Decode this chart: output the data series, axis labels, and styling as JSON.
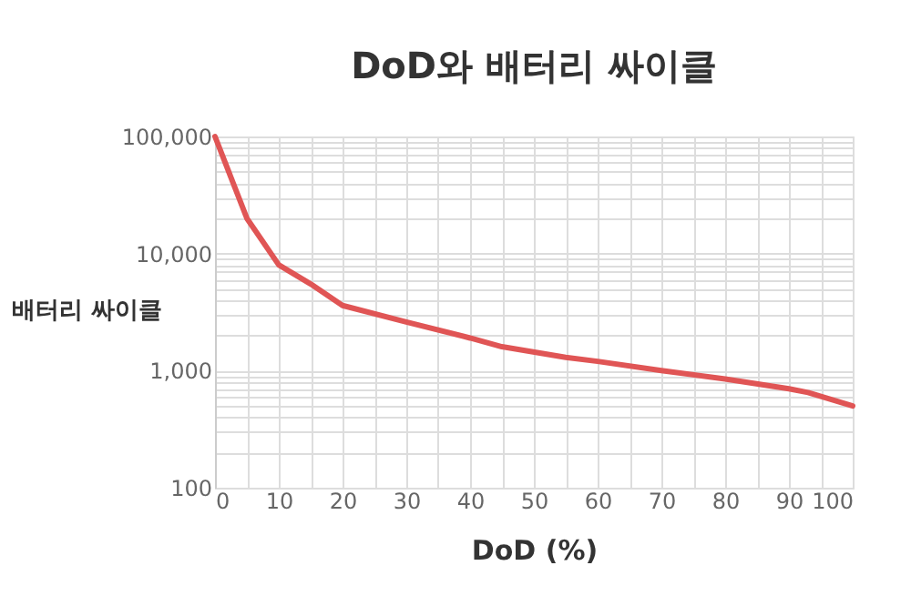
{
  "chart_data": {
    "type": "line",
    "title": "DoD와 배터리 싸이클",
    "xlabel": "DoD (%)",
    "ylabel": "배터리 싸이클",
    "x": [
      0,
      5,
      10,
      15,
      20,
      30,
      40,
      45,
      55,
      60,
      70,
      80,
      90,
      93,
      100
    ],
    "series": [
      {
        "color": "#e05555",
        "values": [
          100000,
          20000,
          8000,
          5500,
          3600,
          2600,
          1900,
          1600,
          1300,
          1200,
          1000,
          850,
          700,
          650,
          500
        ]
      }
    ],
    "xlim": [
      0,
      100
    ],
    "xticks": [
      0,
      {
        "value": 5,
        "label": null
      },
      10,
      {
        "value": 15,
        "label": null
      },
      20,
      {
        "value": 25,
        "label": null
      },
      30,
      {
        "value": 35,
        "label": null
      },
      40,
      {
        "value": 45,
        "label": null
      },
      50,
      {
        "value": 55,
        "label": null
      },
      60,
      {
        "value": 65,
        "label": null
      },
      70,
      {
        "value": 75,
        "label": null
      },
      80,
      {
        "value": 85,
        "label": null
      },
      90,
      {
        "value": 95,
        "label": null
      },
      100
    ],
    "ylim": [
      100,
      100000
    ],
    "yticks": [
      {
        "value": 100,
        "label": "100"
      },
      {
        "value": 200,
        "label": null
      },
      {
        "value": 300,
        "label": null
      },
      {
        "value": 400,
        "label": null
      },
      {
        "value": 500,
        "label": null
      },
      {
        "value": 600,
        "label": null
      },
      {
        "value": 700,
        "label": null
      },
      {
        "value": 800,
        "label": null
      },
      {
        "value": 900,
        "label": null
      },
      {
        "value": 1000,
        "label": "1,000"
      },
      {
        "value": 2000,
        "label": null
      },
      {
        "value": 3000,
        "label": null
      },
      {
        "value": 4000,
        "label": null
      },
      {
        "value": 5000,
        "label": null
      },
      {
        "value": 6000,
        "label": null
      },
      {
        "value": 7000,
        "label": null
      },
      {
        "value": 8000,
        "label": null
      },
      {
        "value": 9000,
        "label": null
      },
      {
        "value": 10000,
        "label": "10,000"
      },
      {
        "value": 20000,
        "label": null
      },
      {
        "value": 30000,
        "label": null
      },
      {
        "value": 40000,
        "label": null
      },
      {
        "value": 50000,
        "label": null
      },
      {
        "value": 60000,
        "label": null
      },
      {
        "value": 70000,
        "label": null
      },
      {
        "value": 80000,
        "label": null
      },
      {
        "value": 90000,
        "label": null
      },
      {
        "value": 100000,
        "label": "100,000"
      }
    ],
    "log": "y",
    "grid": true,
    "line_style": "solid"
  }
}
